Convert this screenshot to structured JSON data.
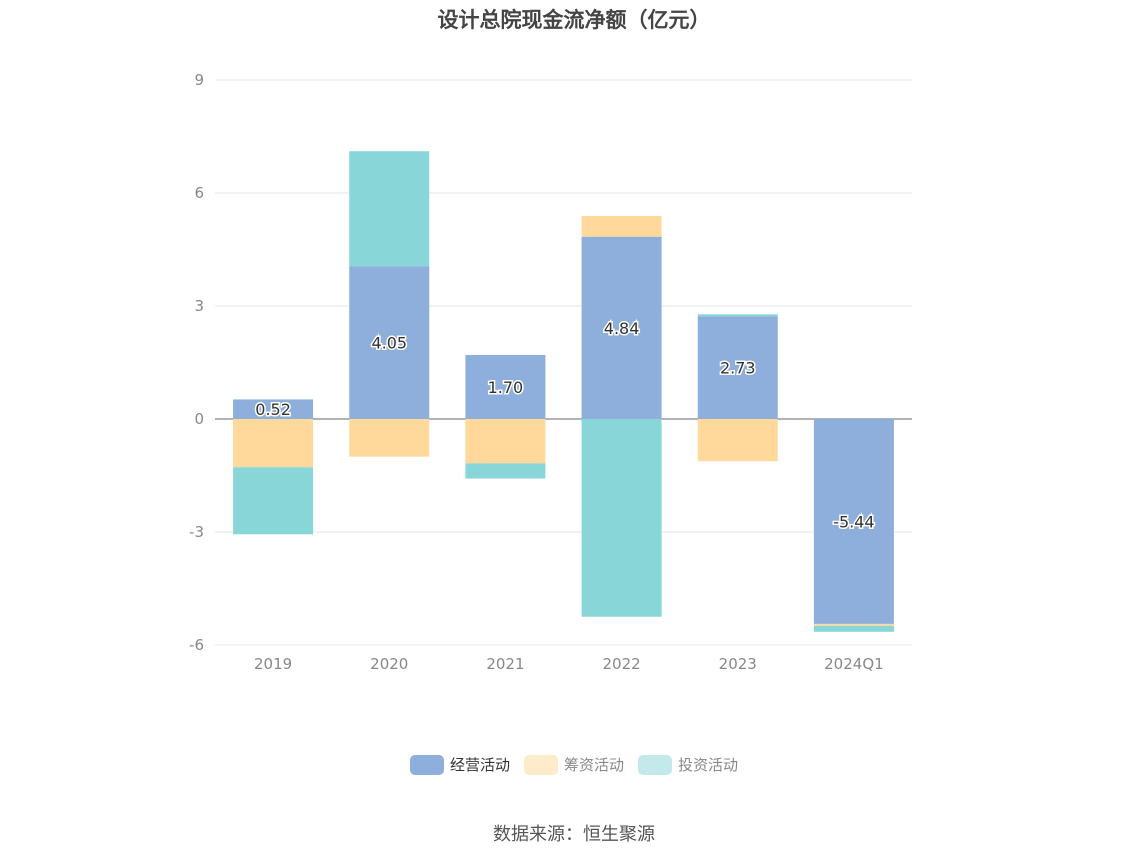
{
  "title": "设计总院现金流净额（亿元）",
  "source": "数据来源：恒生聚源",
  "chart_data": {
    "type": "bar",
    "stacked": true,
    "title": "设计总院现金流净额（亿元）",
    "categories": [
      "2019",
      "2020",
      "2021",
      "2022",
      "2023",
      "2024Q1"
    ],
    "ylim": [
      -6,
      9
    ],
    "yticks": [
      "9",
      "6",
      "3",
      "0",
      "-3",
      "-6"
    ],
    "grid": true,
    "legend_position": "bottom",
    "series": [
      {
        "name": "经营活动",
        "color": "#8eaedb",
        "values": [
          0.52,
          4.05,
          1.7,
          4.84,
          2.73,
          -5.44
        ],
        "labels": [
          "0.52",
          "4.05",
          "1.70",
          "4.84",
          "2.73",
          "-5.44"
        ]
      },
      {
        "name": "筹资活动",
        "color": "#fed99b",
        "values": [
          -1.28,
          -1.0,
          -1.18,
          0.55,
          -1.12,
          -0.05
        ]
      },
      {
        "name": "投资活动",
        "color": "#89d6d9",
        "values": [
          -1.78,
          3.06,
          -0.4,
          -5.25,
          0.05,
          -0.16
        ]
      }
    ]
  }
}
